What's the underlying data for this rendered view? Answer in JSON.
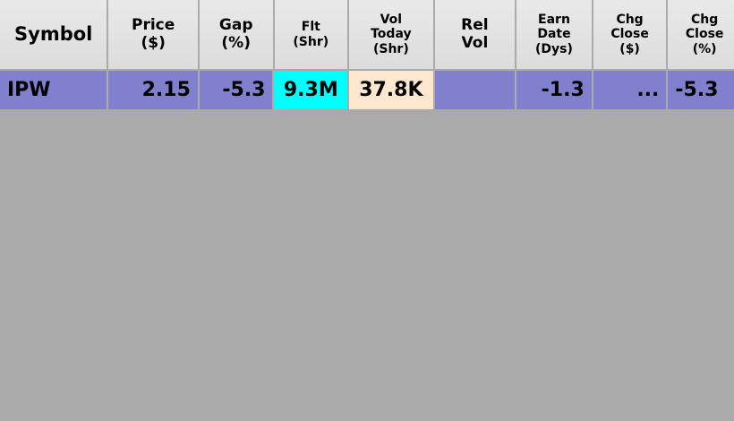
{
  "columns": [
    {
      "id": "symbol",
      "label_lines": [
        "Symbol"
      ]
    },
    {
      "id": "price",
      "label_lines": [
        "Price",
        "($)"
      ]
    },
    {
      "id": "gap",
      "label_lines": [
        "Gap",
        "(%)"
      ]
    },
    {
      "id": "float",
      "label_lines": [
        "Flt",
        "(Shr)"
      ]
    },
    {
      "id": "vol_today",
      "label_lines": [
        "Vol",
        "Today",
        "(Shr)"
      ]
    },
    {
      "id": "rel_vol",
      "label_lines": [
        "Rel",
        "Vol"
      ]
    },
    {
      "id": "earn_date",
      "label_lines": [
        "Earn",
        "Date",
        "(Dys)"
      ]
    },
    {
      "id": "chg_close_usd",
      "label_lines": [
        "Chg",
        "Close",
        "($)"
      ]
    },
    {
      "id": "chg_close_pct",
      "label_lines": [
        "Chg",
        "Close",
        "(%)"
      ]
    }
  ],
  "rows": [
    {
      "symbol": "IPW",
      "price": "2.15",
      "gap": "-5.3",
      "float": "9.3M",
      "vol_today": "37.8K",
      "rel_vol": "",
      "earn_date": "-1.3",
      "chg_close_usd": "...",
      "chg_close_pct": "-5.3"
    }
  ],
  "colors": {
    "background": "#aaaaaa",
    "header_bg": "#e3e3e3",
    "row_highlight": "#8080cf",
    "float_cell": "#00ffff",
    "vol_today_cell": "#ffe6cf"
  }
}
